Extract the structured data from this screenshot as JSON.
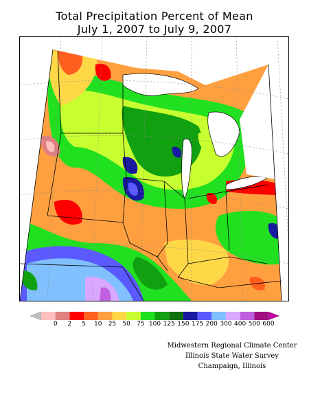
{
  "title": {
    "line1": "Total Precipitation Percent of Mean",
    "line2": "July 1, 2007 to July 9, 2007"
  },
  "legend": {
    "ticks": [
      "0",
      "2",
      "5",
      "10",
      "25",
      "50",
      "75",
      "100",
      "125",
      "150",
      "175",
      "200",
      "300",
      "400",
      "500",
      "600"
    ],
    "colors": [
      "#bfbfbf",
      "#ffc0c0",
      "#e08080",
      "#ff0000",
      "#ff6020",
      "#ffa040",
      "#ffd848",
      "#c8ff30",
      "#20e020",
      "#10a010",
      "#107010",
      "#1a1aa0",
      "#5a5aff",
      "#80c0ff",
      "#d8a8ff",
      "#c060e0",
      "#a01080",
      "#c000a0"
    ]
  },
  "credits": {
    "line1": "Midwestern Regional Climate Center",
    "line2": "Illinois State Water Survey",
    "line3": "Champaign, Illinois"
  }
}
